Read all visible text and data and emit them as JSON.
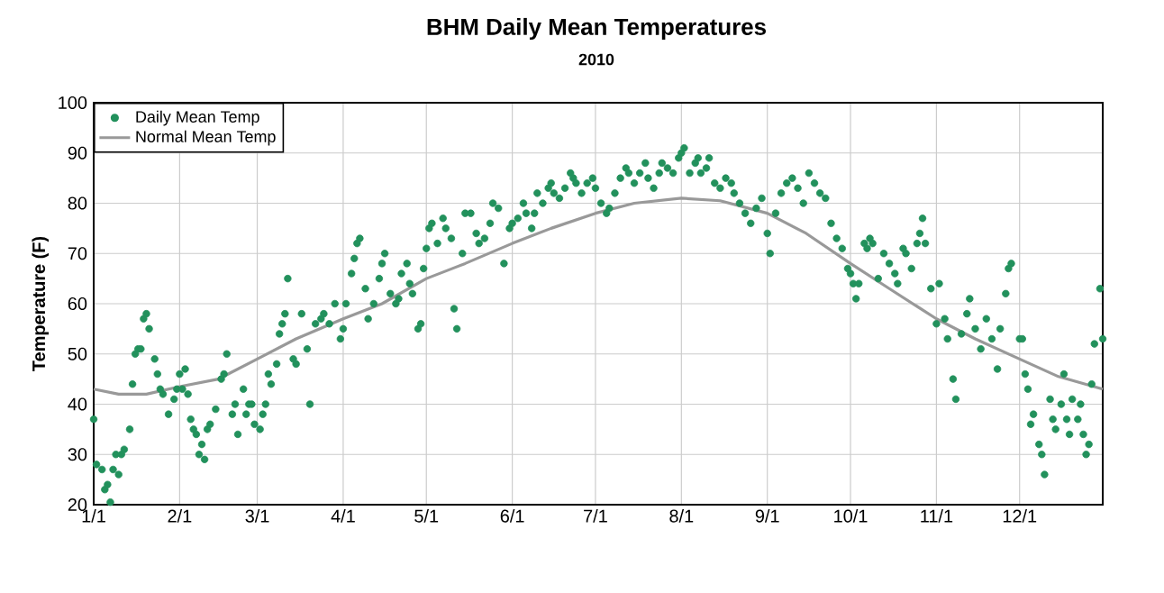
{
  "chart_data": {
    "type": "scatter",
    "title": "BHM Daily Mean Temperatures",
    "subtitle": "2010",
    "ylabel": "Temperature (F)",
    "xlim": [
      "2010-01-01",
      "2010-12-31"
    ],
    "xticks": [
      {
        "value": "2010-01-01",
        "label": "1/1"
      },
      {
        "value": "2010-02-01",
        "label": "2/1"
      },
      {
        "value": "2010-03-01",
        "label": "3/1"
      },
      {
        "value": "2010-04-01",
        "label": "4/1"
      },
      {
        "value": "2010-05-01",
        "label": "5/1"
      },
      {
        "value": "2010-06-01",
        "label": "6/1"
      },
      {
        "value": "2010-07-01",
        "label": "7/1"
      },
      {
        "value": "2010-08-01",
        "label": "8/1"
      },
      {
        "value": "2010-09-01",
        "label": "9/1"
      },
      {
        "value": "2010-10-01",
        "label": "10/1"
      },
      {
        "value": "2010-11-01",
        "label": "11/1"
      },
      {
        "value": "2010-12-01",
        "label": "12/1"
      }
    ],
    "ylim": [
      20,
      100
    ],
    "yticks": [
      20,
      30,
      40,
      50,
      60,
      70,
      80,
      90,
      100
    ],
    "grid": true,
    "legend": "top left",
    "series": [
      {
        "name": "Daily Mean Temp",
        "marker": "circle",
        "color": "#22915c",
        "x": [
          "2010-01-01",
          "2010-01-02",
          "2010-01-04",
          "2010-01-05",
          "2010-01-06",
          "2010-01-07",
          "2010-01-08",
          "2010-01-09",
          "2010-01-10",
          "2010-01-11",
          "2010-01-12",
          "2010-01-14",
          "2010-01-15",
          "2010-01-16",
          "2010-01-17",
          "2010-01-18",
          "2010-01-19",
          "2010-01-20",
          "2010-01-21",
          "2010-01-23",
          "2010-01-24",
          "2010-01-25",
          "2010-01-26",
          "2010-01-28",
          "2010-01-30",
          "2010-01-31",
          "2010-02-01",
          "2010-02-02",
          "2010-02-03",
          "2010-02-04",
          "2010-02-05",
          "2010-02-06",
          "2010-02-07",
          "2010-02-08",
          "2010-02-09",
          "2010-02-10",
          "2010-02-11",
          "2010-02-12",
          "2010-02-14",
          "2010-02-16",
          "2010-02-17",
          "2010-02-18",
          "2010-02-20",
          "2010-02-21",
          "2010-02-22",
          "2010-02-24",
          "2010-02-25",
          "2010-02-26",
          "2010-02-27",
          "2010-02-28",
          "2010-03-02",
          "2010-03-03",
          "2010-03-04",
          "2010-03-05",
          "2010-03-06",
          "2010-03-08",
          "2010-03-09",
          "2010-03-10",
          "2010-03-11",
          "2010-03-12",
          "2010-03-14",
          "2010-03-15",
          "2010-03-17",
          "2010-03-19",
          "2010-03-20",
          "2010-03-22",
          "2010-03-24",
          "2010-03-25",
          "2010-03-27",
          "2010-03-29",
          "2010-03-31",
          "2010-04-01",
          "2010-04-02",
          "2010-04-04",
          "2010-04-05",
          "2010-04-06",
          "2010-04-07",
          "2010-04-09",
          "2010-04-10",
          "2010-04-12",
          "2010-04-14",
          "2010-04-15",
          "2010-04-16",
          "2010-04-18",
          "2010-04-20",
          "2010-04-21",
          "2010-04-22",
          "2010-04-24",
          "2010-04-25",
          "2010-04-26",
          "2010-04-28",
          "2010-04-29",
          "2010-04-30",
          "2010-05-01",
          "2010-05-02",
          "2010-05-03",
          "2010-05-05",
          "2010-05-07",
          "2010-05-08",
          "2010-05-10",
          "2010-05-11",
          "2010-05-12",
          "2010-05-14",
          "2010-05-15",
          "2010-05-17",
          "2010-05-19",
          "2010-05-20",
          "2010-05-22",
          "2010-05-24",
          "2010-05-25",
          "2010-05-27",
          "2010-05-29",
          "2010-05-31",
          "2010-06-01",
          "2010-06-03",
          "2010-06-05",
          "2010-06-06",
          "2010-06-08",
          "2010-06-09",
          "2010-06-10",
          "2010-06-12",
          "2010-06-14",
          "2010-06-15",
          "2010-06-16",
          "2010-06-18",
          "2010-06-20",
          "2010-06-22",
          "2010-06-23",
          "2010-06-24",
          "2010-06-26",
          "2010-06-28",
          "2010-06-30",
          "2010-07-01",
          "2010-07-03",
          "2010-07-05",
          "2010-07-06",
          "2010-07-08",
          "2010-07-10",
          "2010-07-12",
          "2010-07-13",
          "2010-07-15",
          "2010-07-17",
          "2010-07-19",
          "2010-07-20",
          "2010-07-22",
          "2010-07-24",
          "2010-07-25",
          "2010-07-27",
          "2010-07-29",
          "2010-07-31",
          "2010-08-01",
          "2010-08-02",
          "2010-08-04",
          "2010-08-06",
          "2010-08-07",
          "2010-08-08",
          "2010-08-10",
          "2010-08-11",
          "2010-08-13",
          "2010-08-15",
          "2010-08-17",
          "2010-08-19",
          "2010-08-20",
          "2010-08-22",
          "2010-08-24",
          "2010-08-26",
          "2010-08-28",
          "2010-08-30",
          "2010-09-01",
          "2010-09-02",
          "2010-09-04",
          "2010-09-06",
          "2010-09-08",
          "2010-09-10",
          "2010-09-12",
          "2010-09-14",
          "2010-09-16",
          "2010-09-18",
          "2010-09-20",
          "2010-09-22",
          "2010-09-24",
          "2010-09-26",
          "2010-09-28",
          "2010-09-30",
          "2010-10-01",
          "2010-10-02",
          "2010-10-03",
          "2010-10-04",
          "2010-10-06",
          "2010-10-07",
          "2010-10-08",
          "2010-10-09",
          "2010-10-11",
          "2010-10-13",
          "2010-10-15",
          "2010-10-17",
          "2010-10-18",
          "2010-10-20",
          "2010-10-21",
          "2010-10-23",
          "2010-10-25",
          "2010-10-26",
          "2010-10-27",
          "2010-10-28",
          "2010-10-30",
          "2010-11-01",
          "2010-11-02",
          "2010-11-04",
          "2010-11-05",
          "2010-11-07",
          "2010-11-08",
          "2010-11-10",
          "2010-11-12",
          "2010-11-13",
          "2010-11-15",
          "2010-11-17",
          "2010-11-19",
          "2010-11-21",
          "2010-11-23",
          "2010-11-24",
          "2010-11-26",
          "2010-11-27",
          "2010-11-28",
          "2010-12-01",
          "2010-12-02",
          "2010-12-03",
          "2010-12-04",
          "2010-12-05",
          "2010-12-06",
          "2010-12-08",
          "2010-12-09",
          "2010-12-10",
          "2010-12-12",
          "2010-12-13",
          "2010-12-14",
          "2010-12-16",
          "2010-12-17",
          "2010-12-18",
          "2010-12-19",
          "2010-12-20",
          "2010-12-22",
          "2010-12-23",
          "2010-12-24",
          "2010-12-25",
          "2010-12-26",
          "2010-12-27",
          "2010-12-28",
          "2010-12-30",
          "2010-12-31"
        ],
        "values": [
          37,
          28,
          27,
          23,
          24,
          20.5,
          27,
          30,
          26,
          30,
          31,
          35,
          44,
          50,
          51,
          51,
          57,
          58,
          55,
          49,
          46,
          43,
          42,
          38,
          41,
          43,
          46,
          43,
          47,
          42,
          37,
          35,
          34,
          30,
          32,
          29,
          35,
          36,
          39,
          45,
          46,
          50,
          38,
          40,
          34,
          43,
          38,
          40,
          40,
          36,
          35,
          38,
          40,
          46,
          44,
          48,
          54,
          56,
          58,
          65,
          49,
          48,
          58,
          51,
          40,
          56,
          57,
          58,
          56,
          60,
          53,
          55,
          60,
          66,
          69,
          72,
          73,
          63,
          57,
          60,
          65,
          68,
          70,
          62,
          60,
          61,
          66,
          68,
          64,
          62,
          55,
          56,
          67,
          71,
          75,
          76,
          72,
          77,
          75,
          73,
          59,
          55,
          70,
          78,
          78,
          74,
          72,
          73,
          76,
          80,
          79,
          68,
          75,
          76,
          77,
          80,
          78,
          75,
          78,
          82,
          80,
          83,
          84,
          82,
          81,
          83,
          86,
          85,
          84,
          82,
          84,
          85,
          83,
          80,
          78,
          79,
          82,
          85,
          87,
          86,
          84,
          86,
          88,
          85,
          83,
          86,
          88,
          87,
          86,
          89,
          90,
          91,
          86,
          88,
          89,
          86,
          87,
          89,
          84,
          83,
          85,
          84,
          82,
          80,
          78,
          76,
          79,
          81,
          74,
          70,
          78,
          82,
          84,
          85,
          83,
          80,
          86,
          84,
          82,
          81,
          76,
          73,
          71,
          67,
          66,
          64,
          61,
          64,
          72,
          71,
          73,
          72,
          65,
          70,
          68,
          66,
          64,
          71,
          70,
          67,
          72,
          74,
          77,
          72,
          63,
          56,
          64,
          57,
          53,
          45,
          41,
          54,
          58,
          61,
          55,
          51,
          57,
          53,
          47,
          55,
          62,
          67,
          68,
          53,
          53,
          46,
          43,
          36,
          38,
          32,
          30,
          26,
          41,
          37,
          35,
          40,
          46,
          37,
          34,
          41,
          37,
          40,
          34,
          30,
          32,
          44,
          52,
          63,
          53
        ]
      },
      {
        "name": "Normal Mean Temp",
        "type": "line",
        "marker": "none",
        "color": "#999999",
        "x": [
          "2010-01-01",
          "2010-01-10",
          "2010-01-20",
          "2010-02-01",
          "2010-02-15",
          "2010-03-01",
          "2010-03-15",
          "2010-04-01",
          "2010-04-15",
          "2010-05-01",
          "2010-05-15",
          "2010-06-01",
          "2010-06-15",
          "2010-07-01",
          "2010-07-15",
          "2010-08-01",
          "2010-08-15",
          "2010-09-01",
          "2010-09-15",
          "2010-10-01",
          "2010-10-15",
          "2010-11-01",
          "2010-11-15",
          "2010-12-01",
          "2010-12-15",
          "2010-12-31"
        ],
        "values": [
          43,
          42,
          42,
          43.5,
          45,
          49,
          53,
          57,
          60,
          65,
          68,
          72,
          75,
          78,
          80,
          81,
          80.5,
          78,
          74,
          68,
          63,
          57,
          53,
          49,
          45.5,
          43
        ]
      }
    ]
  }
}
